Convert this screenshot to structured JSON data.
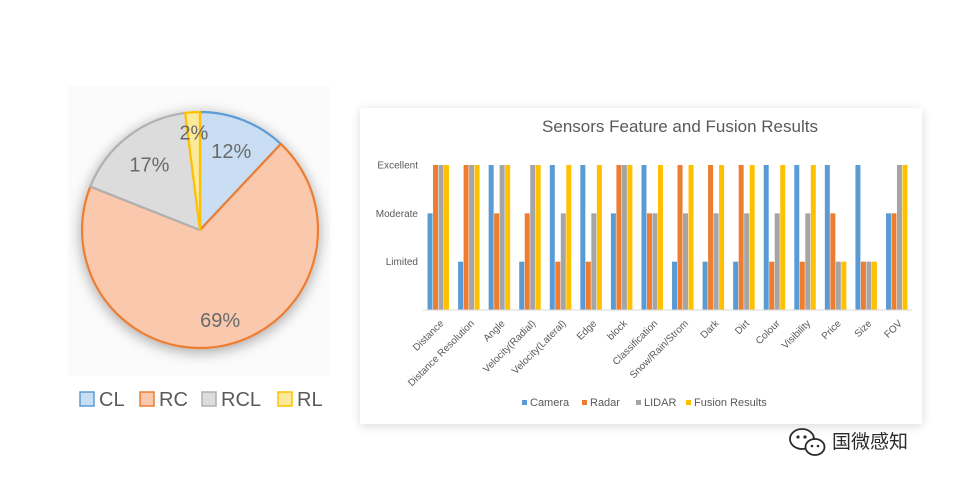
{
  "chart_data": [
    {
      "type": "pie",
      "categories": [
        "CL",
        "RC",
        "RCL",
        "RL"
      ],
      "values": [
        12,
        69,
        17,
        2
      ],
      "labels": [
        "12%",
        "69%",
        "17%",
        "2%"
      ],
      "colors": [
        "#c9def3",
        "#f9c8ad",
        "#dcdcdc",
        "#fde99a"
      ],
      "edge_colors": [
        "#5b9bd5",
        "#ed7d31",
        "#b0b0b0",
        "#ffc000"
      ],
      "start_angle_deg": 90,
      "direction": "clockwise",
      "legend_position": "bottom"
    },
    {
      "type": "bar",
      "title": "Sensors Feature and Fusion Results",
      "categories": [
        "Distance",
        "Distance Resolution",
        "Angle",
        "Velocity(Radial)",
        "Velocity(Lateral)",
        "Edge",
        "block",
        "Classification",
        "Snow/Rain/Strom",
        "Dark",
        "Dirt",
        "Colour",
        "Visibility",
        "Price",
        "Size",
        "FOV"
      ],
      "y_tick_labels": [
        "Limited",
        "Moderate",
        "Excellent"
      ],
      "y_tick_values": [
        1,
        2,
        3
      ],
      "ylim": [
        0,
        3
      ],
      "series": [
        {
          "name": "Camera",
          "color": "#5b9bd5",
          "values": [
            2,
            1,
            3,
            1,
            3,
            3,
            2,
            3,
            1,
            1,
            1,
            3,
            3,
            3,
            3,
            2
          ]
        },
        {
          "name": "Radar",
          "color": "#ed7d31",
          "values": [
            3,
            3,
            2,
            2,
            1,
            1,
            3,
            2,
            3,
            3,
            3,
            1,
            1,
            2,
            1,
            2
          ]
        },
        {
          "name": "LIDAR",
          "color": "#a5a5a5",
          "values": [
            3,
            3,
            3,
            3,
            2,
            2,
            3,
            2,
            2,
            2,
            2,
            2,
            2,
            1,
            1,
            3
          ]
        },
        {
          "name": "Fusion Results",
          "color": "#ffc000",
          "values": [
            3,
            3,
            3,
            3,
            3,
            3,
            3,
            3,
            3,
            3,
            3,
            3,
            3,
            1,
            1,
            3
          ]
        }
      ],
      "legend_position": "bottom",
      "grid": false
    }
  ],
  "watermark": {
    "text": "国微感知",
    "icon": "wechat-icon"
  }
}
